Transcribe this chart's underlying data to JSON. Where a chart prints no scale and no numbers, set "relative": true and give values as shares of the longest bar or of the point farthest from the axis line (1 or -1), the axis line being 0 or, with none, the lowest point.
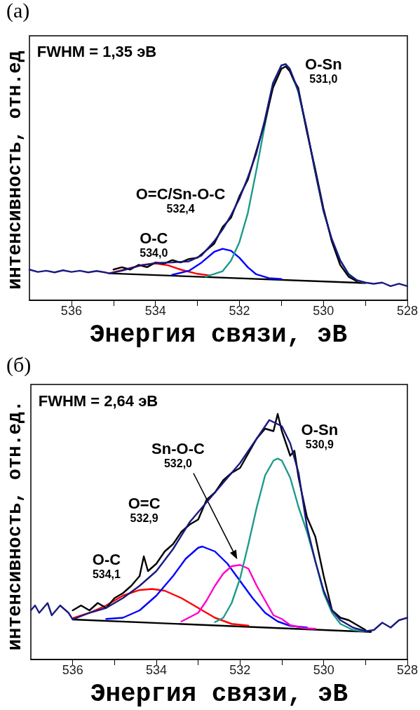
{
  "chart_data": [
    {
      "type": "line",
      "title": "(a)",
      "xlabel": "Энергия связи, эВ",
      "ylabel": "интенсивность, отн.ед",
      "relative": true,
      "marker": "none",
      "grid": false,
      "xlim": [
        537,
        528
      ],
      "xticks": [
        536,
        {
          "value": 535,
          "label": null
        },
        534,
        {
          "value": 533,
          "label": null
        },
        532,
        {
          "value": 531,
          "label": null
        },
        530,
        {
          "value": 529,
          "label": null
        },
        528
      ],
      "annotations": [
        "FWHM = 1,35 эВ",
        "O-Sn\n531,0",
        "O=C/Sn-O-C\n532,4",
        "O-C\n534,0"
      ],
      "series": [
        {
          "color": "#000000",
          "x": [
            535.1,
            529.0
          ],
          "values": [
            0.114,
            0.073
          ]
        },
        {
          "color": "#ff0000",
          "x": [
            535.1,
            534.3,
            534.0,
            533.7,
            533.4,
            533.0,
            532.7
          ],
          "values": [
            0.114,
            0.15,
            0.156,
            0.148,
            0.13,
            0.112,
            0.105
          ]
        },
        {
          "color": "#0000ff",
          "x": [
            533.6,
            533.2,
            532.9,
            532.6,
            532.4,
            532.2,
            532.0,
            531.8,
            531.6,
            531.3,
            531.0
          ],
          "values": [
            0.108,
            0.125,
            0.16,
            0.205,
            0.218,
            0.21,
            0.18,
            0.14,
            0.11,
            0.094,
            0.09
          ]
        },
        {
          "color": "#1e9a8a",
          "x": [
            532.8,
            532.4,
            532.2,
            532.0,
            531.8,
            531.6,
            531.4,
            531.2,
            531.0,
            530.9,
            530.8,
            530.6,
            530.4,
            530.2,
            530.0,
            529.8,
            529.6,
            529.4,
            529.2,
            529.0
          ],
          "values": [
            0.1,
            0.123,
            0.168,
            0.246,
            0.369,
            0.547,
            0.737,
            0.916,
            0.994,
            1.0,
            0.978,
            0.883,
            0.726,
            0.547,
            0.38,
            0.257,
            0.168,
            0.112,
            0.084,
            0.073
          ]
        },
        {
          "color": "#000000",
          "x": [
            535.0,
            534.8,
            534.6,
            534.4,
            534.2,
            534.0,
            533.8,
            533.6,
            533.4,
            533.2,
            533.0,
            532.8,
            532.6,
            532.4,
            532.2,
            532.0,
            531.8,
            531.6,
            531.4,
            531.2,
            531.0,
            530.9,
            530.8,
            530.7,
            530.6,
            530.4,
            530.2,
            530.0,
            529.8,
            529.6,
            529.4,
            529.2
          ],
          "values": [
            0.13,
            0.14,
            0.13,
            0.15,
            0.14,
            0.16,
            0.155,
            0.17,
            0.16,
            0.175,
            0.18,
            0.21,
            0.24,
            0.31,
            0.35,
            0.44,
            0.51,
            0.63,
            0.75,
            0.9,
            0.98,
            0.99,
            0.97,
            0.93,
            0.9,
            0.72,
            0.56,
            0.39,
            0.25,
            0.15,
            0.1,
            0.08
          ]
        },
        {
          "color": "#1a1a80",
          "x": [
            537.0,
            536.8,
            536.6,
            536.4,
            536.2,
            536.0,
            535.8,
            535.6,
            535.4,
            535.2,
            535.1,
            534.8,
            534.4,
            534.0,
            533.6,
            533.2,
            532.9,
            532.6,
            532.4,
            532.2,
            532.0,
            531.8,
            531.6,
            531.4,
            531.2,
            531.0,
            530.9,
            530.8,
            530.6,
            530.4,
            530.2,
            530.0,
            529.8,
            529.6,
            529.4,
            529.2,
            529.0,
            528.8,
            528.6,
            528.4,
            528.2,
            528.0
          ],
          "values": [
            0.13,
            0.12,
            0.125,
            0.118,
            0.127,
            0.12,
            0.125,
            0.118,
            0.124,
            0.118,
            0.114,
            0.125,
            0.145,
            0.158,
            0.16,
            0.165,
            0.19,
            0.25,
            0.3,
            0.36,
            0.43,
            0.52,
            0.62,
            0.76,
            0.92,
            0.995,
            1.0,
            0.98,
            0.89,
            0.73,
            0.55,
            0.38,
            0.26,
            0.17,
            0.11,
            0.085,
            0.075,
            0.07,
            0.075,
            0.06,
            0.07,
            0.06
          ]
        }
      ]
    },
    {
      "type": "line",
      "title": "(б)",
      "xlabel": "Энергия связи, эВ",
      "ylabel": "интенсивность, отн.ед.",
      "relative": true,
      "marker": "none",
      "grid": false,
      "xlim": [
        537,
        528
      ],
      "xticks": [
        536,
        {
          "value": 535,
          "label": null
        },
        534,
        {
          "value": 533,
          "label": null
        },
        532,
        {
          "value": 531,
          "label": null
        },
        530,
        {
          "value": 529,
          "label": null
        },
        528
      ],
      "annotations": [
        "FWHM = 2,64 эВ",
        "Sn-O-C\n532,0",
        "O-Sn\n530,9",
        "O=C\n532,9",
        "O-C\n534,1"
      ],
      "series": [
        {
          "color": "#000000",
          "x": [
            536.0,
            528.87
          ],
          "values": [
            0.163,
            0.112
          ]
        },
        {
          "color": "#ff0000",
          "x": [
            536.0,
            535.6,
            535.2,
            534.8,
            534.4,
            534.1,
            533.8,
            533.4,
            533.0,
            532.6,
            532.2,
            531.8
          ],
          "values": [
            0.168,
            0.19,
            0.22,
            0.26,
            0.283,
            0.287,
            0.28,
            0.25,
            0.21,
            0.17,
            0.145,
            0.138
          ]
        },
        {
          "color": "#0000ff",
          "x": [
            535.2,
            534.8,
            534.4,
            534.0,
            533.6,
            533.3,
            533.0,
            532.9,
            532.6,
            532.3,
            532.0,
            531.7,
            531.4,
            531.1,
            530.8,
            530.4
          ],
          "values": [
            0.165,
            0.17,
            0.2,
            0.26,
            0.34,
            0.41,
            0.455,
            0.46,
            0.44,
            0.39,
            0.32,
            0.25,
            0.19,
            0.155,
            0.137,
            0.13
          ]
        },
        {
          "color": "#ff00cc",
          "x": [
            533.4,
            533.0,
            532.8,
            532.6,
            532.4,
            532.2,
            532.0,
            531.8,
            531.6,
            531.4,
            531.2,
            531.0,
            530.8,
            530.5,
            530.2
          ],
          "values": [
            0.155,
            0.19,
            0.24,
            0.3,
            0.35,
            0.38,
            0.385,
            0.37,
            0.3,
            0.24,
            0.18,
            0.165,
            0.14,
            0.128,
            0.125
          ]
        },
        {
          "color": "#1e9a8a",
          "x": [
            532.6,
            532.4,
            532.2,
            532.0,
            531.8,
            531.6,
            531.4,
            531.2,
            531.1,
            531.0,
            530.8,
            530.6,
            530.4,
            530.2,
            530.0,
            529.8,
            529.6,
            529.3,
            529.0
          ],
          "values": [
            0.152,
            0.17,
            0.23,
            0.33,
            0.47,
            0.62,
            0.75,
            0.81,
            0.818,
            0.81,
            0.74,
            0.62,
            0.52,
            0.4,
            0.27,
            0.19,
            0.145,
            0.12,
            0.114
          ]
        },
        {
          "color": "#000000",
          "x": [
            536.0,
            535.8,
            535.6,
            535.4,
            535.2,
            535.0,
            534.8,
            534.6,
            534.4,
            534.3,
            534.2,
            534.0,
            533.8,
            533.6,
            533.4,
            533.2,
            533.0,
            532.8,
            532.6,
            532.4,
            532.2,
            532.0,
            531.8,
            531.6,
            531.4,
            531.2,
            531.1,
            531.0,
            530.8,
            530.7,
            530.6,
            530.4,
            530.2,
            530.0,
            529.8,
            529.6,
            529.4,
            529.2,
            529.0
          ],
          "values": [
            0.2,
            0.22,
            0.2,
            0.23,
            0.21,
            0.25,
            0.27,
            0.3,
            0.34,
            0.42,
            0.36,
            0.39,
            0.44,
            0.47,
            0.52,
            0.55,
            0.57,
            0.65,
            0.68,
            0.73,
            0.76,
            0.78,
            0.84,
            0.9,
            0.94,
            0.93,
            1.0,
            0.93,
            0.83,
            0.85,
            0.74,
            0.58,
            0.5,
            0.34,
            0.2,
            0.17,
            0.16,
            0.14,
            0.12
          ]
        },
        {
          "color": "#1a1a80",
          "x": [
            537.0,
            536.9,
            536.8,
            536.6,
            536.5,
            536.3,
            536.1,
            536.0,
            535.6,
            535.2,
            534.8,
            534.4,
            534.0,
            533.6,
            533.2,
            532.8,
            532.4,
            532.0,
            531.6,
            531.3,
            531.0,
            530.8,
            530.6,
            530.4,
            530.2,
            530.0,
            529.8,
            529.6,
            529.3,
            529.0,
            528.8,
            528.6,
            528.4,
            528.2,
            528.0
          ],
          "values": [
            0.2,
            0.22,
            0.19,
            0.23,
            0.18,
            0.22,
            0.19,
            0.163,
            0.19,
            0.21,
            0.25,
            0.3,
            0.36,
            0.45,
            0.56,
            0.64,
            0.72,
            0.8,
            0.9,
            0.975,
            0.95,
            0.88,
            0.76,
            0.54,
            0.4,
            0.28,
            0.2,
            0.16,
            0.13,
            0.115,
            0.12,
            0.15,
            0.13,
            0.16,
            0.17
          ]
        }
      ]
    }
  ]
}
